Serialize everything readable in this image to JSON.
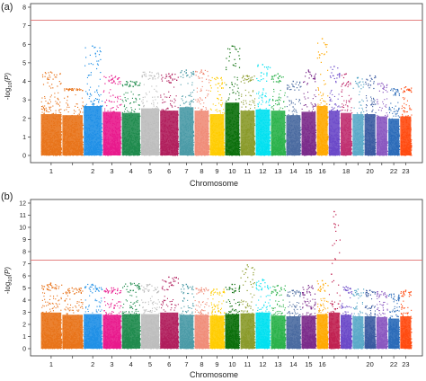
{
  "chart_data": [
    {
      "type": "scatter",
      "panel_label": "(a)",
      "xlabel": "Chromosome",
      "ylabel_main": "-log",
      "ylabel_sub": "10",
      "ylabel_var": "(P)",
      "ylim": [
        0,
        8
      ],
      "yticks": [
        0,
        1,
        2,
        3,
        4,
        5,
        6,
        7,
        8
      ],
      "threshold": 7.3,
      "threshold_color": "#e07070",
      "grid": false,
      "chromosomes": [
        {
          "tick_label": "1",
          "color": "#e8731a",
          "typical_max": 3.6,
          "peak": 4.5
        },
        {
          "tick_label": "",
          "color": "#e8731a",
          "typical_max": 3.5,
          "peak": 3.6
        },
        {
          "tick_label": "2",
          "color": "#1f8fe6",
          "typical_max": 4.3,
          "peak": 5.9
        },
        {
          "tick_label": "3",
          "color": "#e8188c",
          "typical_max": 3.8,
          "peak": 4.3
        },
        {
          "tick_label": "4",
          "color": "#1e8a4c",
          "typical_max": 3.7,
          "peak": 4.0
        },
        {
          "tick_label": "5",
          "color": "#bcbcbc",
          "typical_max": 4.1,
          "peak": 4.5
        },
        {
          "tick_label": "6",
          "color": "#b01e5c",
          "typical_max": 3.9,
          "peak": 4.4
        },
        {
          "tick_label": "7",
          "color": "#4a9aa6",
          "typical_max": 4.2,
          "peak": 4.6
        },
        {
          "tick_label": "8",
          "color": "#f08c78",
          "typical_max": 3.9,
          "peak": 4.6
        },
        {
          "tick_label": "9",
          "color": "#ffcc00",
          "typical_max": 3.6,
          "peak": 4.2
        },
        {
          "tick_label": "10",
          "color": "#0a6e0a",
          "typical_max": 4.6,
          "peak": 5.9
        },
        {
          "tick_label": "11",
          "color": "#8a9a2a",
          "typical_max": 3.9,
          "peak": 4.3
        },
        {
          "tick_label": "12",
          "color": "#00e0f0",
          "typical_max": 4.0,
          "peak": 4.9
        },
        {
          "tick_label": "13",
          "color": "#2ab14a",
          "typical_max": 3.9,
          "peak": 4.4
        },
        {
          "tick_label": "14",
          "color": "#4a6aa0",
          "typical_max": 3.5,
          "peak": 4.0
        },
        {
          "tick_label": "15",
          "color": "#7a2a8a",
          "typical_max": 3.8,
          "peak": 4.6
        },
        {
          "tick_label": "16",
          "color": "#ffa800",
          "typical_max": 4.3,
          "peak": 6.3
        },
        {
          "tick_label": "",
          "color": "#6a48c8",
          "typical_max": 3.9,
          "peak": 4.8
        },
        {
          "tick_label": "18",
          "color": "#c03070",
          "typical_max": 3.7,
          "peak": 4.4
        },
        {
          "tick_label": "",
          "color": "#5aa8c8",
          "typical_max": 3.6,
          "peak": 4.2
        },
        {
          "tick_label": "20",
          "color": "#3a5aa0",
          "typical_max": 3.6,
          "peak": 4.3
        },
        {
          "tick_label": "",
          "color": "#8a58c0",
          "typical_max": 3.4,
          "peak": 3.9
        },
        {
          "tick_label": "22",
          "color": "#2a6ab8",
          "typical_max": 3.2,
          "peak": 3.6
        },
        {
          "tick_label": "23",
          "color": "#ff4a10",
          "typical_max": 3.4,
          "peak": 3.7
        }
      ]
    },
    {
      "type": "scatter",
      "panel_label": "(b)",
      "xlabel": "Chromosome",
      "ylabel_main": "-log",
      "ylabel_sub": "10",
      "ylabel_var": "(P)",
      "ylim": [
        0,
        12
      ],
      "yticks": [
        0,
        1,
        2,
        3,
        4,
        5,
        6,
        7,
        8,
        9,
        10,
        11,
        12
      ],
      "threshold": 7.3,
      "threshold_color": "#e07070",
      "grid": false,
      "chromosomes": [
        {
          "tick_label": "1",
          "color": "#e8731a",
          "typical_max": 4.8,
          "peak": 5.4
        },
        {
          "tick_label": "",
          "color": "#e8731a",
          "typical_max": 4.5,
          "peak": 5.0
        },
        {
          "tick_label": "2",
          "color": "#1f8fe6",
          "typical_max": 4.6,
          "peak": 5.3
        },
        {
          "tick_label": "3",
          "color": "#e8188c",
          "typical_max": 4.5,
          "peak": 5.0
        },
        {
          "tick_label": "4",
          "color": "#1e8a4c",
          "typical_max": 4.6,
          "peak": 5.4
        },
        {
          "tick_label": "5",
          "color": "#bcbcbc",
          "typical_max": 4.6,
          "peak": 5.3
        },
        {
          "tick_label": "6",
          "color": "#b01e5c",
          "typical_max": 4.8,
          "peak": 5.9
        },
        {
          "tick_label": "7",
          "color": "#4a9aa6",
          "typical_max": 4.5,
          "peak": 5.3
        },
        {
          "tick_label": "8",
          "color": "#f08c78",
          "typical_max": 4.5,
          "peak": 5.0
        },
        {
          "tick_label": "9",
          "color": "#ffcc00",
          "typical_max": 4.4,
          "peak": 4.9
        },
        {
          "tick_label": "10",
          "color": "#0a6e0a",
          "typical_max": 4.6,
          "peak": 5.3
        },
        {
          "tick_label": "11",
          "color": "#8a9a2a",
          "typical_max": 4.7,
          "peak": 6.9
        },
        {
          "tick_label": "12",
          "color": "#00e0f0",
          "typical_max": 4.8,
          "peak": 5.7
        },
        {
          "tick_label": "13",
          "color": "#2ab14a",
          "typical_max": 4.4,
          "peak": 5.2
        },
        {
          "tick_label": "14",
          "color": "#4a6aa0",
          "typical_max": 4.3,
          "peak": 4.8
        },
        {
          "tick_label": "15",
          "color": "#7a2a8a",
          "typical_max": 4.4,
          "peak": 5.2
        },
        {
          "tick_label": "16",
          "color": "#ffa800",
          "typical_max": 4.6,
          "peak": 5.6
        },
        {
          "tick_label": "",
          "color": "#c02050",
          "typical_max": 4.8,
          "peak": 11.3,
          "extra_peaks": [
            10.3,
            10.0
          ]
        },
        {
          "tick_label": "",
          "color": "#6a48c8",
          "typical_max": 4.5,
          "peak": 5.1
        },
        {
          "tick_label": "",
          "color": "#5aa8c8",
          "typical_max": 4.3,
          "peak": 4.9
        },
        {
          "tick_label": "20",
          "color": "#3a5aa0",
          "typical_max": 4.3,
          "peak": 4.8
        },
        {
          "tick_label": "",
          "color": "#8a58c0",
          "typical_max": 4.2,
          "peak": 4.7
        },
        {
          "tick_label": "22",
          "color": "#2a6ab8",
          "typical_max": 4.0,
          "peak": 4.5
        },
        {
          "tick_label": "23",
          "color": "#ff4a10",
          "typical_max": 4.3,
          "peak": 4.8
        }
      ]
    }
  ]
}
